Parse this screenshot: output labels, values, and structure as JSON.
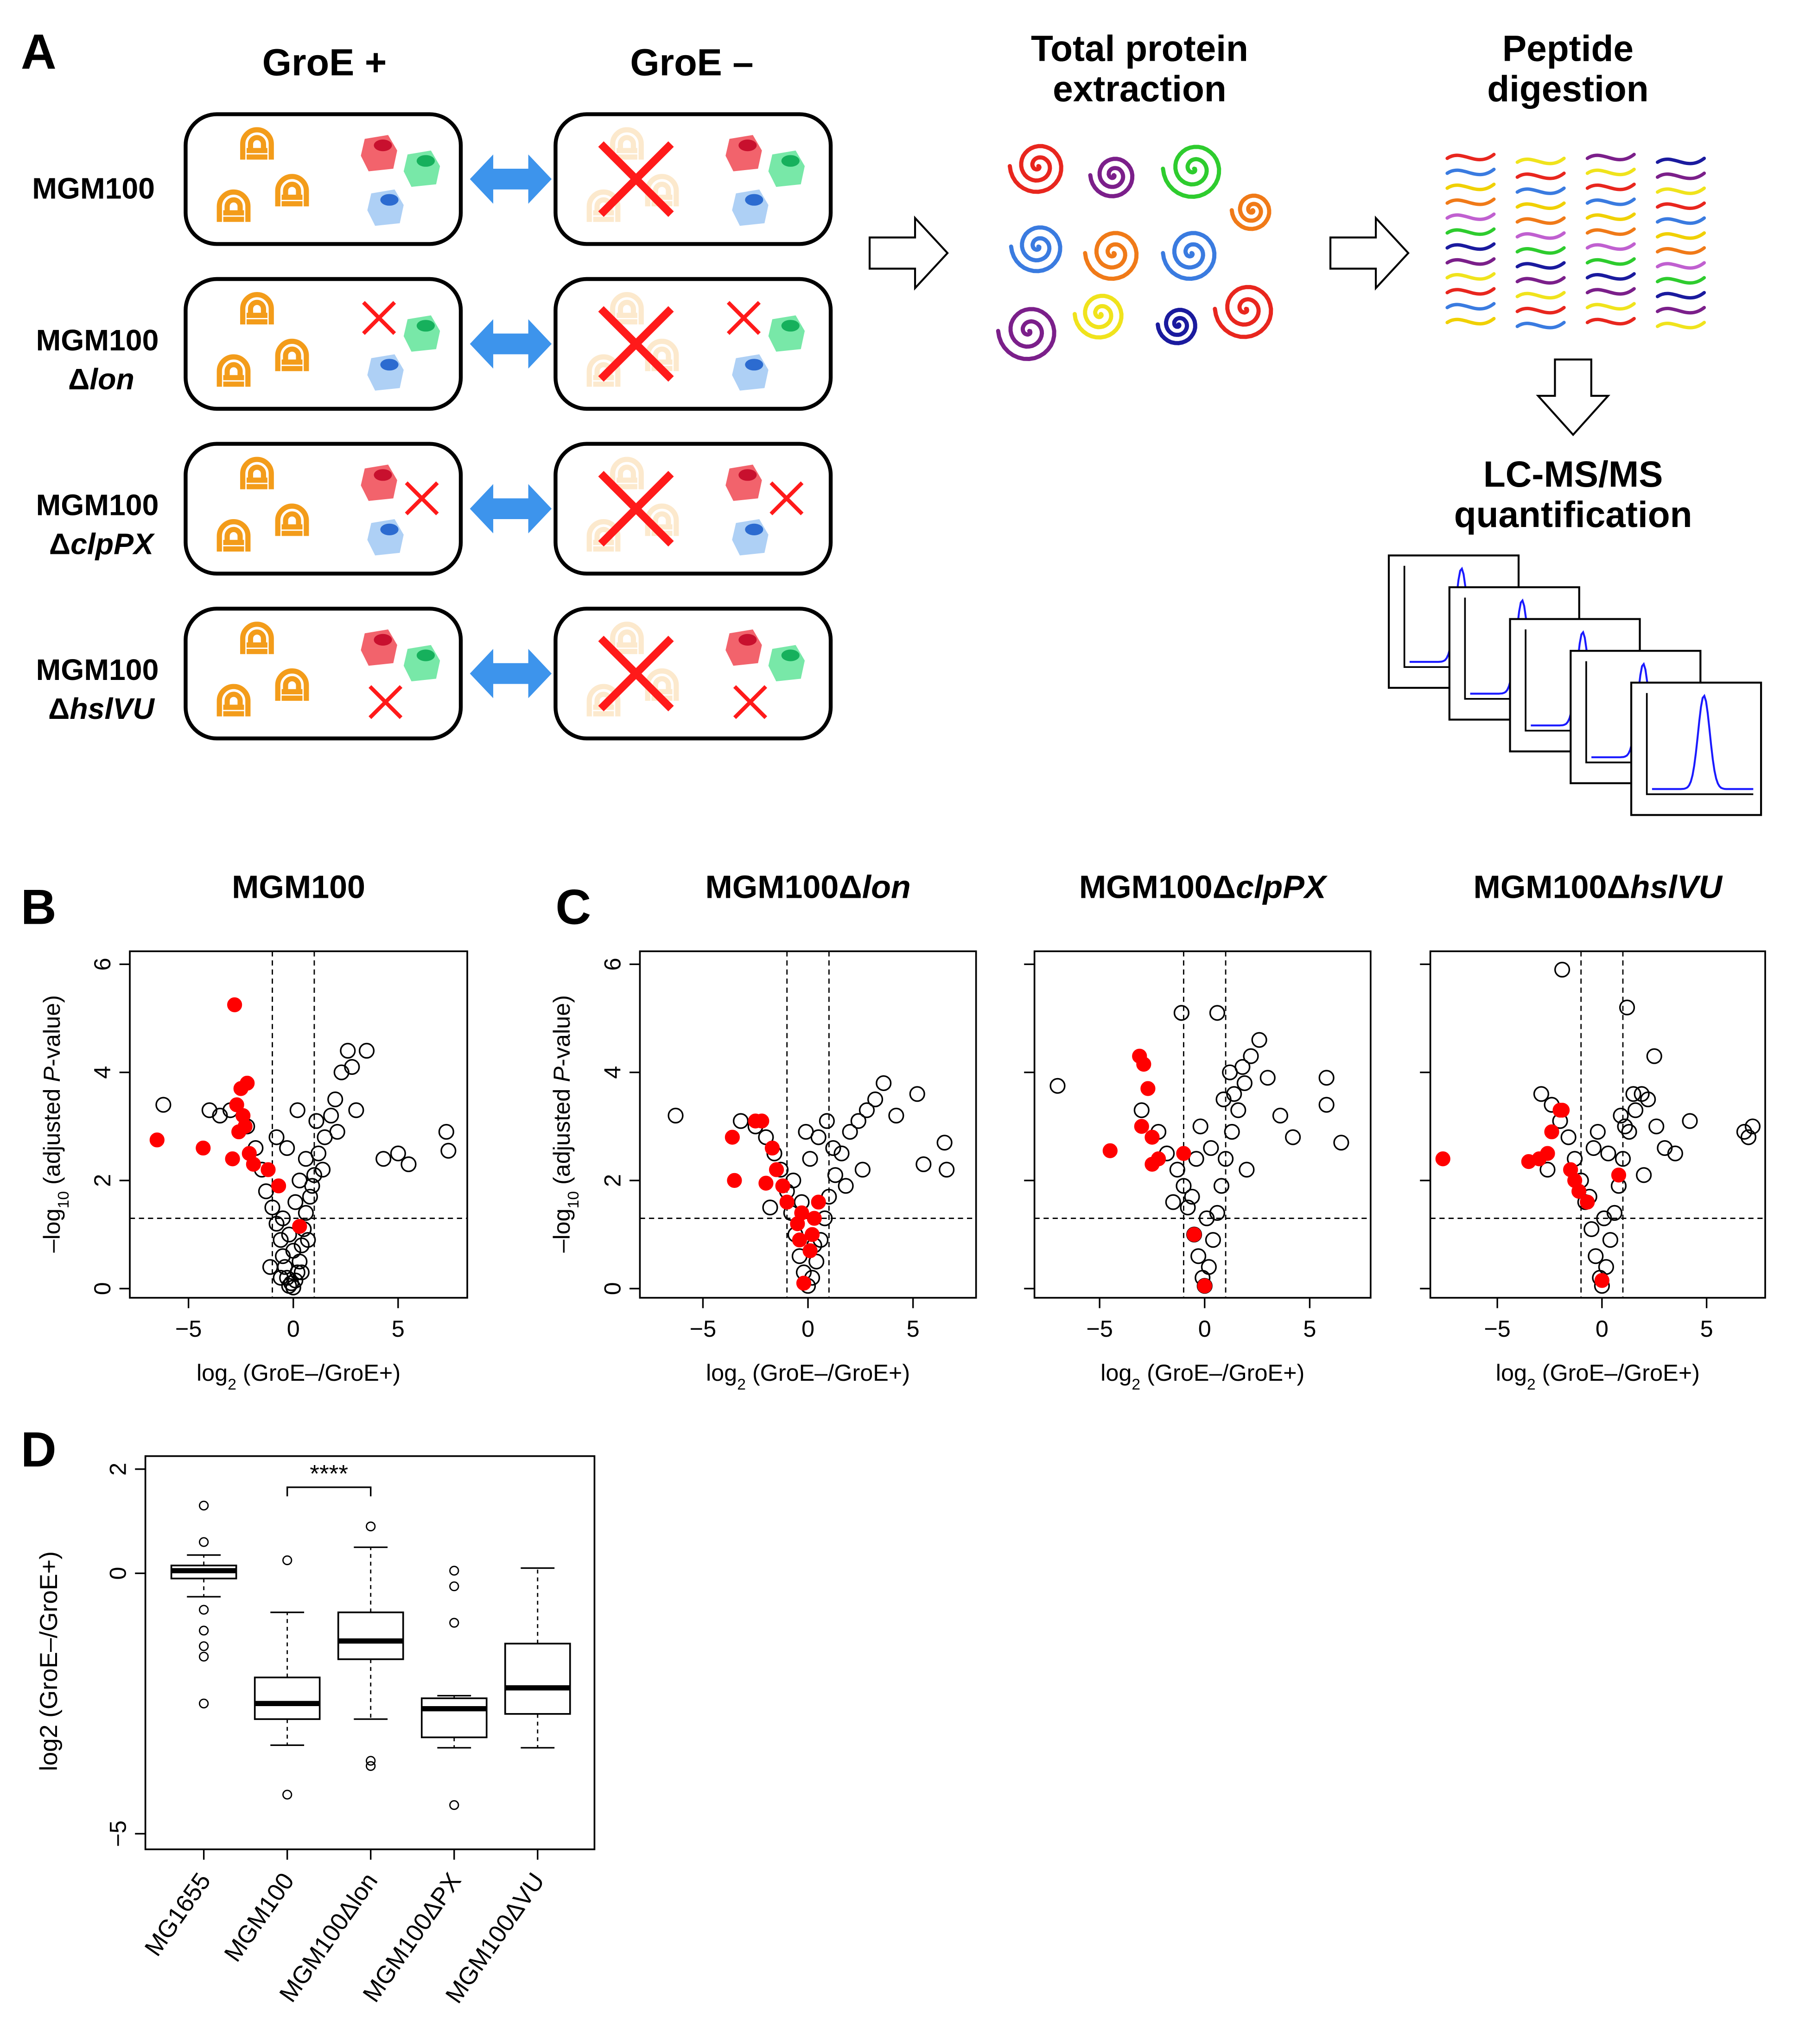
{
  "panel_a": {
    "label": "A",
    "columns": [
      "GroE +",
      "GroE –"
    ],
    "strains": [
      {
        "name": "MGM100"
      },
      {
        "name": "MGM100",
        "delta": "Δ",
        "gene": "lon"
      },
      {
        "name": "MGM100",
        "delta": "Δ",
        "gene": "clpPX"
      },
      {
        "name": "MGM100",
        "delta": "Δ",
        "gene": "hslVU"
      }
    ],
    "steps": [
      {
        "lines": [
          "Total protein",
          "extraction"
        ]
      },
      {
        "lines": [
          "Peptide",
          "digestion"
        ]
      },
      {
        "lines": [
          "LC-MS/MS",
          "quantification"
        ]
      }
    ]
  },
  "panel_letters": [
    "B",
    "C",
    "D"
  ],
  "chart_data": [
    {
      "type": "scatter",
      "title": "MGM100",
      "xlabel": [
        "log",
        "2",
        " (GroE–/GroE+)"
      ],
      "ylabel": [
        "–log",
        "10",
        " (adjusted ",
        "P",
        "-value)"
      ],
      "xlim": [
        -7.8,
        8.3
      ],
      "ylim": [
        -0.17,
        6.24
      ],
      "xticks": [
        {
          "value": -5,
          "label": "−5"
        },
        0,
        5
      ],
      "yticks": [
        0,
        2,
        4,
        6
      ],
      "vlines": [
        -1,
        1
      ],
      "hline": 1.3,
      "series": [
        {
          "color": "#000000",
          "marker": "open",
          "x": [
            -6.2,
            -4.0,
            -3.5,
            -3.0,
            -2.2,
            -1.8,
            -1.5,
            -1.3,
            -1.0,
            -0.8,
            -0.6,
            -0.5,
            -0.4,
            -0.3,
            -0.2,
            -0.1,
            0,
            0.1,
            0.2,
            0.3,
            0.4,
            0.5,
            0.6,
            0.8,
            1.0,
            1.2,
            1.5,
            1.8,
            2.0,
            2.3,
            2.6,
            2.8,
            3.0,
            3.5,
            4.3,
            5.0,
            5.5,
            7.3,
            7.4,
            -0.2,
            0.1,
            0.3,
            -0.5,
            0.6,
            -0.8,
            1.1,
            0.0,
            -0.3,
            0.4,
            0.9,
            -1.1,
            1.4,
            2.1,
            0.2,
            -0.6,
            0.7
          ],
          "y": [
            3.4,
            3.3,
            3.2,
            3.3,
            3.0,
            2.6,
            2.2,
            1.8,
            1.5,
            1.2,
            0.9,
            0.6,
            0.4,
            0.2,
            0.05,
            0.1,
            0.02,
            0.15,
            0.3,
            0.5,
            0.8,
            1.1,
            1.4,
            1.7,
            2.1,
            2.5,
            2.8,
            3.2,
            3.5,
            4.0,
            4.4,
            4.1,
            3.3,
            4.4,
            2.4,
            2.5,
            2.3,
            2.9,
            2.55,
            1.0,
            1.6,
            2.0,
            1.3,
            2.4,
            2.8,
            3.1,
            0.7,
            2.6,
            0.3,
            1.9,
            0.4,
            2.2,
            2.9,
            3.3,
            0.2,
            0.9
          ]
        },
        {
          "color": "#ff0000",
          "marker": "filled",
          "x": [
            -6.5,
            -4.3,
            -2.8,
            -2.5,
            -2.2,
            -2.7,
            -2.4,
            -2.6,
            -2.9,
            -2.1,
            -1.9,
            -1.2,
            -0.7,
            0.3,
            -2.3
          ],
          "y": [
            2.75,
            2.6,
            5.25,
            3.7,
            3.8,
            3.4,
            3.2,
            2.9,
            2.4,
            2.5,
            2.3,
            2.2,
            1.9,
            1.15,
            3.0
          ]
        }
      ]
    },
    {
      "type": "scatter",
      "title": "MGM100Δ",
      "title_italic": "lon",
      "xlabel": [
        "log",
        "2",
        " (GroE–/GroE+)"
      ],
      "ylabel": [
        "–log",
        "10",
        " (adjusted ",
        "P",
        "-value)"
      ],
      "xlim": [
        -8,
        8
      ],
      "ylim": [
        -0.17,
        6.24
      ],
      "xticks": [
        {
          "value": -5,
          "label": "−5"
        },
        0,
        5
      ],
      "yticks": [
        0,
        2,
        4,
        6
      ],
      "vlines": [
        -1,
        1
      ],
      "hline": 1.3,
      "series": [
        {
          "color": "#000000",
          "marker": "open",
          "x": [
            -6.3,
            -3.2,
            -2.5,
            -2.0,
            -1.6,
            -1.3,
            -1.0,
            -0.8,
            -0.6,
            -0.4,
            -0.2,
            0,
            0.2,
            0.4,
            0.6,
            0.8,
            1.0,
            1.3,
            1.6,
            2.0,
            2.4,
            2.8,
            3.2,
            3.6,
            4.2,
            5.2,
            5.5,
            6.5,
            6.6,
            -0.3,
            0.1,
            0.5,
            -0.7,
            0.9,
            1.8,
            2.6,
            -1.8,
            0.3,
            -0.1,
            1.2
          ],
          "y": [
            3.2,
            3.1,
            3.0,
            2.8,
            2.5,
            2.2,
            1.8,
            1.4,
            1.0,
            0.6,
            0.3,
            0.05,
            0.2,
            0.5,
            0.9,
            1.3,
            1.7,
            2.1,
            2.5,
            2.9,
            3.1,
            3.3,
            3.5,
            3.8,
            3.2,
            3.6,
            2.3,
            2.7,
            2.2,
            1.6,
            2.4,
            2.8,
            2.0,
            3.1,
            1.9,
            2.2,
            1.5,
            0.8,
            2.9,
            2.6
          ]
        },
        {
          "color": "#ff0000",
          "marker": "filled",
          "x": [
            -3.6,
            -3.5,
            -2.5,
            -2.2,
            -1.7,
            -1.5,
            -1.2,
            -2.0,
            -1.0,
            -0.5,
            -0.3,
            0.2,
            0.5,
            0.1,
            -0.2,
            0.3,
            -0.4
          ],
          "y": [
            2.8,
            2.0,
            3.1,
            3.1,
            2.6,
            2.2,
            1.9,
            1.95,
            1.6,
            1.2,
            1.4,
            1.0,
            1.6,
            0.7,
            0.1,
            1.3,
            0.9
          ]
        }
      ]
    },
    {
      "type": "scatter",
      "title": "MGM100Δ",
      "title_italic": "clpPX",
      "xlim": [
        -8.1,
        7.9
      ],
      "ylim": [
        -0.17,
        6.24
      ],
      "xticks": [
        {
          "value": -5,
          "label": "−5"
        },
        0,
        5
      ],
      "yticks": [
        0,
        2,
        4,
        6
      ],
      "ytick_labels": false,
      "xlabel": [
        "log",
        "2",
        " (GroE–/GroE+)"
      ],
      "vlines": [
        -1,
        1
      ],
      "hline": 1.3,
      "series": [
        {
          "color": "#000000",
          "marker": "open",
          "x": [
            -7.0,
            -3.0,
            -2.2,
            -1.8,
            -1.3,
            -1.0,
            -0.8,
            -0.5,
            -0.3,
            -0.1,
            0,
            0.2,
            0.4,
            0.6,
            0.8,
            1.0,
            1.3,
            1.6,
            1.9,
            2.2,
            2.6,
            3.0,
            3.6,
            4.2,
            5.8,
            5.8,
            6.5,
            -1.1,
            0.6,
            1.8,
            -0.6,
            0.3,
            -0.2,
            0.9,
            1.4,
            -1.5,
            2.0,
            0.1,
            -0.4,
            1.2
          ],
          "y": [
            3.75,
            3.3,
            2.9,
            2.5,
            2.2,
            1.9,
            1.5,
            1.0,
            0.6,
            0.2,
            0.05,
            0.4,
            0.9,
            1.4,
            1.9,
            2.4,
            2.9,
            3.3,
            3.8,
            4.3,
            4.6,
            3.9,
            3.2,
            2.8,
            3.9,
            3.4,
            2.7,
            5.1,
            5.1,
            4.1,
            1.7,
            2.6,
            3.0,
            3.5,
            3.6,
            1.6,
            2.2,
            1.3,
            2.4,
            4.0
          ]
        },
        {
          "color": "#ff0000",
          "marker": "filled",
          "x": [
            -3.1,
            -2.9,
            -2.7,
            -3.0,
            -4.5,
            -2.5,
            -2.2,
            -2.5,
            -1.0,
            -0.5,
            0.0
          ],
          "y": [
            4.3,
            4.15,
            3.7,
            3.0,
            2.55,
            2.8,
            2.4,
            2.3,
            2.5,
            1.0,
            0.05
          ]
        }
      ]
    },
    {
      "type": "scatter",
      "title": "MGM100Δ",
      "title_italic": "hslVU",
      "xlim": [
        -8.2,
        7.8
      ],
      "ylim": [
        -0.17,
        6.24
      ],
      "xticks": [
        {
          "value": -5,
          "label": "−5"
        },
        0,
        5
      ],
      "yticks": [
        0,
        2,
        4,
        6
      ],
      "ytick_labels": false,
      "xlabel": [
        "log",
        "2",
        " (GroE–/GroE+)"
      ],
      "vlines": [
        -1,
        1
      ],
      "hline": 1.3,
      "series": [
        {
          "color": "#000000",
          "marker": "open",
          "x": [
            -2.9,
            -2.4,
            -2.0,
            -1.6,
            -1.3,
            -1.0,
            -0.8,
            -0.5,
            -0.3,
            -0.1,
            0,
            0.2,
            0.4,
            0.6,
            0.8,
            1.0,
            1.3,
            1.6,
            1.9,
            2.2,
            2.6,
            3.0,
            3.5,
            4.2,
            6.8,
            7.0,
            7.2,
            -1.9,
            1.2,
            2.5,
            -0.6,
            0.3,
            -0.2,
            0.9,
            1.5,
            -2.6,
            2.0,
            0.1,
            -0.4,
            1.1
          ],
          "y": [
            3.6,
            3.4,
            3.1,
            2.8,
            2.4,
            2.0,
            1.6,
            1.1,
            0.6,
            0.2,
            0.05,
            0.4,
            0.9,
            1.4,
            1.9,
            2.4,
            2.9,
            3.3,
            3.6,
            3.5,
            3.0,
            2.6,
            2.5,
            3.1,
            2.9,
            2.8,
            3.0,
            5.9,
            5.2,
            4.3,
            1.7,
            2.5,
            2.9,
            3.2,
            3.6,
            2.2,
            2.1,
            1.3,
            2.6,
            3.0
          ]
        },
        {
          "color": "#ff0000",
          "marker": "filled",
          "x": [
            -7.6,
            -3.5,
            -3.0,
            -2.6,
            -2.4,
            -2.0,
            -1.9,
            -1.5,
            -1.3,
            -1.1,
            -0.7,
            0.8,
            0.0
          ],
          "y": [
            2.4,
            2.35,
            2.4,
            2.5,
            2.9,
            3.3,
            3.3,
            2.2,
            2.0,
            1.8,
            1.6,
            2.1,
            0.15
          ]
        }
      ]
    },
    {
      "type": "box",
      "ylabel": "log2 (GroE–/GroE+)",
      "ylim": [
        -5.3,
        2.25
      ],
      "yticks": [
        2,
        0,
        {
          "value": -5,
          "label": "−5"
        }
      ],
      "categories": [
        "MG1655",
        "MGM100",
        "MGM100Δlon",
        "MGM100ΔPX",
        "MGM100ΔVU"
      ],
      "annotation": "****",
      "whisker_low": [
        -0.45,
        -3.3,
        -2.8,
        -3.35,
        -3.35
      ],
      "q1": [
        -0.1,
        -2.8,
        -1.65,
        -3.15,
        -2.7
      ],
      "median": [
        0.05,
        -2.5,
        -1.3,
        -2.6,
        -2.2
      ],
      "q3": [
        0.15,
        -2.0,
        -0.75,
        -2.4,
        -1.35
      ],
      "whisker_high": [
        0.35,
        -0.75,
        0.5,
        -2.35,
        0.1
      ],
      "outliers": [
        [
          1.3,
          0.6,
          -0.7,
          -1.1,
          -1.4,
          -1.6,
          -2.5
        ],
        [
          0.25,
          -4.25
        ],
        [
          0.9,
          -3.6,
          -3.7
        ],
        [
          0.05,
          -0.25,
          -0.95,
          -4.45
        ],
        []
      ]
    }
  ]
}
